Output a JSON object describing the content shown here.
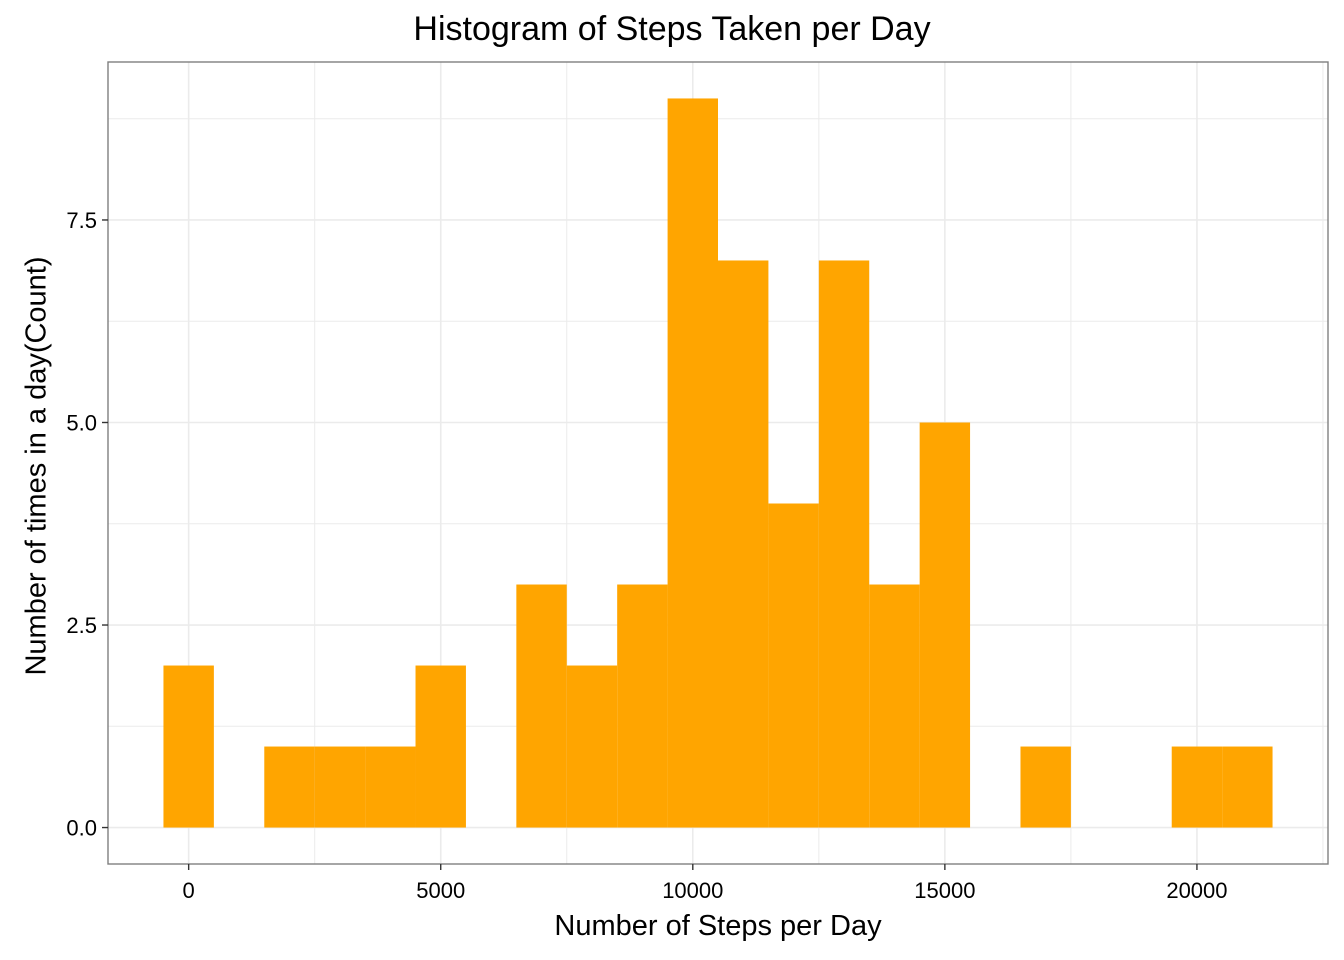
{
  "chart_data": {
    "type": "bar",
    "title": "Histogram of Steps Taken per Day",
    "xlabel": "Number of Steps per Day",
    "ylabel": "Number of times in a day(Count)",
    "bin_width": 1000,
    "bins": [
      {
        "center": 0,
        "count": 2
      },
      {
        "center": 2000,
        "count": 1
      },
      {
        "center": 3000,
        "count": 1
      },
      {
        "center": 4000,
        "count": 1
      },
      {
        "center": 5000,
        "count": 2
      },
      {
        "center": 7000,
        "count": 3
      },
      {
        "center": 8000,
        "count": 2
      },
      {
        "center": 9000,
        "count": 3
      },
      {
        "center": 10000,
        "count": 9
      },
      {
        "center": 11000,
        "count": 7
      },
      {
        "center": 12000,
        "count": 4
      },
      {
        "center": 13000,
        "count": 7
      },
      {
        "center": 14000,
        "count": 3
      },
      {
        "center": 15000,
        "count": 5
      },
      {
        "center": 17000,
        "count": 1
      },
      {
        "center": 20000,
        "count": 1
      },
      {
        "center": 21000,
        "count": 1
      }
    ],
    "x_ticks": [
      0,
      5000,
      10000,
      15000,
      20000
    ],
    "x_tick_labels": [
      "0",
      "5000",
      "10000",
      "15000",
      "20000"
    ],
    "y_ticks": [
      0,
      2.5,
      5,
      7.5
    ],
    "y_tick_labels": [
      "0.0",
      "2.5",
      "5.0",
      "7.5"
    ],
    "xlim": [
      -1600,
      22600
    ],
    "ylim": [
      -0.45,
      9.45
    ],
    "grid": true,
    "bar_color": "#FFA500",
    "grid_color": "#EBEBEB",
    "border_color": "#7F7F7F"
  }
}
